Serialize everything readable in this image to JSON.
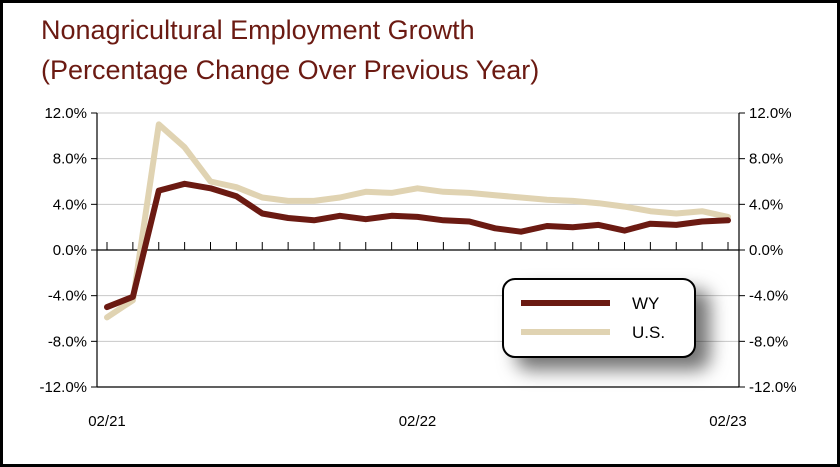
{
  "title_line1": "Nonagricultural Employment Growth",
  "title_line2": "(Percentage Change Over Previous Year)",
  "chart_data": {
    "type": "line",
    "x": [
      "02/21",
      "03/21",
      "04/21",
      "05/21",
      "06/21",
      "07/21",
      "08/21",
      "09/21",
      "10/21",
      "11/21",
      "12/21",
      "01/22",
      "02/22",
      "03/22",
      "04/22",
      "05/22",
      "06/22",
      "07/22",
      "08/22",
      "09/22",
      "10/22",
      "11/22",
      "12/22",
      "01/23",
      "02/23"
    ],
    "x_tick_labels": [
      "02/21",
      "02/22",
      "02/23"
    ],
    "y_tick_labels": [
      "12.0%",
      "8.0%",
      "4.0%",
      "0.0%",
      "-4.0%",
      "-8.0%",
      "-12.0%"
    ],
    "ylim": [
      -12,
      12
    ],
    "grid": true,
    "secondary_axis_mirrors_primary": true,
    "legend_position": "bottom-right",
    "series": [
      {
        "name": "WY",
        "color": "#6b1a12",
        "values": [
          -5.0,
          -4.1,
          5.2,
          5.8,
          5.4,
          4.7,
          3.2,
          2.8,
          2.6,
          3.0,
          2.7,
          3.0,
          2.9,
          2.6,
          2.5,
          1.9,
          1.6,
          2.1,
          2.0,
          2.2,
          1.7,
          2.3,
          2.2,
          2.5,
          2.6
        ]
      },
      {
        "name": "U.S.",
        "color": "#e0d3b2",
        "values": [
          -5.9,
          -4.4,
          11.0,
          9.0,
          6.0,
          5.5,
          4.6,
          4.3,
          4.3,
          4.6,
          5.1,
          5.0,
          5.4,
          5.1,
          5.0,
          4.8,
          4.6,
          4.4,
          4.3,
          4.1,
          3.8,
          3.4,
          3.2,
          3.4,
          2.9
        ]
      }
    ]
  }
}
